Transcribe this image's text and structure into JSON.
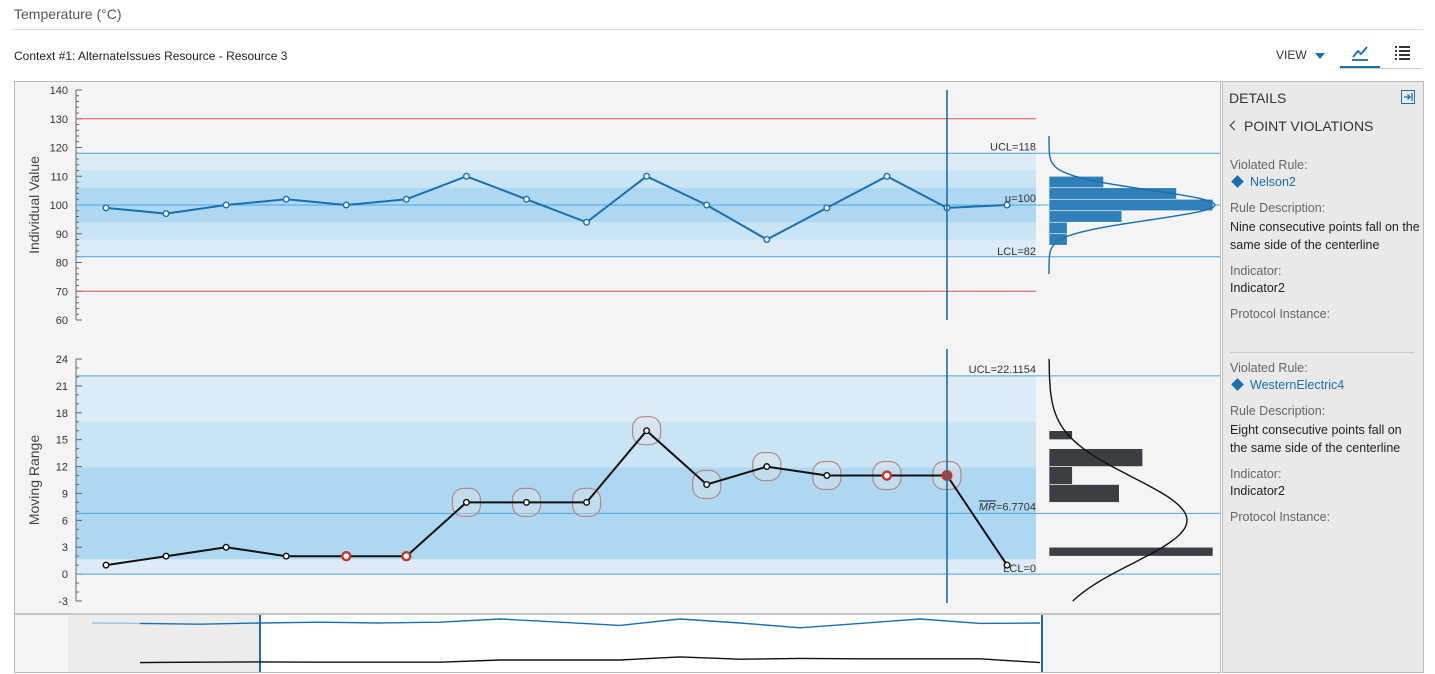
{
  "header": {
    "title": "Temperature (°C)",
    "context": "Context #1: AlternateIssues Resource - Resource 3",
    "view_label": "VIEW"
  },
  "toolbar": {
    "chart_icon": "chart-view-icon",
    "list_icon": "list-view-icon"
  },
  "details": {
    "title": "DETAILS",
    "back_label": "POINT VIOLATIONS",
    "violations": [
      {
        "rule_label": "Violated Rule:",
        "rule": "Nelson2",
        "desc_label": "Rule Description:",
        "desc": "Nine consecutive points fall on the same side of the centerline",
        "indicator_label": "Indicator:",
        "indicator": "Indicator2",
        "protocol_label": "Protocol Instance:"
      },
      {
        "rule_label": "Violated Rule:",
        "rule": "WesternElectric4",
        "desc_label": "Rule Description:",
        "desc": "Eight consecutive points fall on the same side of the centerline",
        "indicator_label": "Indicator:",
        "indicator": "Indicator2",
        "protocol_label": "Protocol Instance:"
      }
    ]
  },
  "colors": {
    "accent": "#1a6fae",
    "spec_limit": "#d9534f",
    "violation": "#c0392b",
    "band_dark": "#aed8f2",
    "band_mid": "#c8e4f5",
    "band_light": "#dcebf5"
  },
  "chart_data": [
    {
      "type": "line",
      "ylabel": "Individual Value",
      "ylim": [
        60,
        140
      ],
      "yticks": [
        60,
        70,
        80,
        90,
        100,
        110,
        120,
        130,
        140
      ],
      "x": [
        1,
        2,
        3,
        4,
        5,
        6,
        7,
        8,
        9,
        10,
        11,
        12,
        13,
        14,
        15,
        16
      ],
      "values": [
        99,
        97,
        100,
        102,
        100,
        102,
        110,
        102,
        94,
        110,
        100,
        88,
        99,
        110,
        99,
        100
      ],
      "ucl": 118,
      "center": 100,
      "lcl": 82,
      "ucl_label": "UCL=118",
      "center_label": "μ=100",
      "lcl_label": "LCL=82",
      "spec_upper": 130,
      "spec_lower": 70,
      "histogram": {
        "bins": [
          [
            106,
            110,
            3
          ],
          [
            102,
            106,
            7
          ],
          [
            98,
            102,
            9
          ],
          [
            94,
            98,
            4
          ],
          [
            90,
            94,
            1
          ],
          [
            86,
            90,
            1
          ]
        ]
      }
    },
    {
      "type": "line",
      "ylabel": "Moving Range",
      "ylim": [
        -3,
        24
      ],
      "yticks": [
        -3,
        0,
        3,
        6,
        9,
        12,
        15,
        18,
        21,
        24
      ],
      "x": [
        1,
        2,
        3,
        4,
        5,
        6,
        7,
        8,
        9,
        10,
        11,
        12,
        13,
        14,
        15,
        16
      ],
      "values": [
        1,
        2,
        3,
        2,
        2,
        2,
        8,
        8,
        8,
        16,
        10,
        12,
        11,
        11,
        11,
        1
      ],
      "ucl": 22.1154,
      "center": 6.7704,
      "lcl": 0,
      "ucl_label": "UCL=22.1154",
      "center_label": "=6.7704",
      "center_symbol": "MR",
      "lcl_label": "LCL=0",
      "violations_red": [
        5,
        6,
        14,
        15
      ],
      "flagged": [
        7,
        8,
        9,
        10,
        11,
        12,
        13,
        14,
        15
      ],
      "selected_index": 15,
      "histogram": {
        "bins": [
          [
            15,
            16,
            1
          ],
          [
            12,
            14,
            4
          ],
          [
            10,
            12,
            1
          ],
          [
            8,
            10,
            3
          ],
          [
            2,
            3,
            7
          ]
        ]
      }
    }
  ]
}
